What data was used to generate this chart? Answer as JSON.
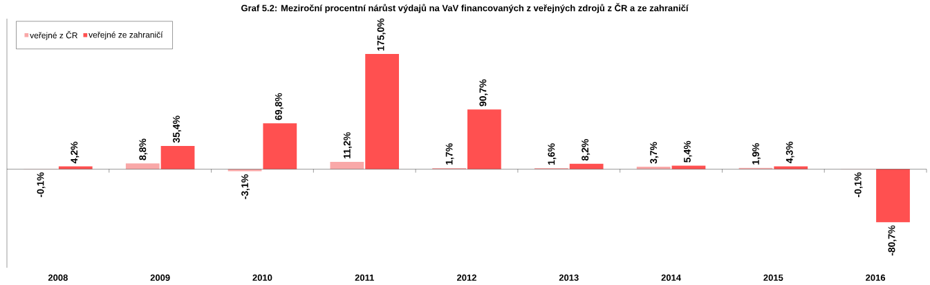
{
  "chart_data": {
    "type": "bar",
    "title": "Graf 5.2: Meziroční procentní nárůst výdajů na VaV financovaných z veřejných zdrojů z ČR a ze zahraničí",
    "categories": [
      "2008",
      "2009",
      "2010",
      "2011",
      "2012",
      "2013",
      "2014",
      "2015",
      "2016"
    ],
    "series": [
      {
        "name": "veřejné z ČR",
        "color": "#f9a8a8",
        "values": [
          -0.1,
          8.8,
          -3.1,
          11.2,
          1.7,
          1.6,
          3.7,
          1.9,
          -0.1
        ],
        "value_labels": [
          "-0,1%",
          "8,8%",
          "-3,1%",
          "11,2%",
          "1,7%",
          "1,6%",
          "3,7%",
          "1,9%",
          "-0,1%"
        ]
      },
      {
        "name": "veřejné ze zahraničí",
        "color": "#ff5050",
        "values": [
          4.2,
          35.4,
          69.8,
          175.0,
          90.7,
          8.2,
          5.4,
          4.3,
          -80.7
        ],
        "value_labels": [
          "4,2%",
          "35,4%",
          "69,8%",
          "175,0%",
          "90,7%",
          "8,2%",
          "5,4%",
          "4,3%",
          "-80,7%"
        ]
      }
    ],
    "legend": "top left"
  }
}
